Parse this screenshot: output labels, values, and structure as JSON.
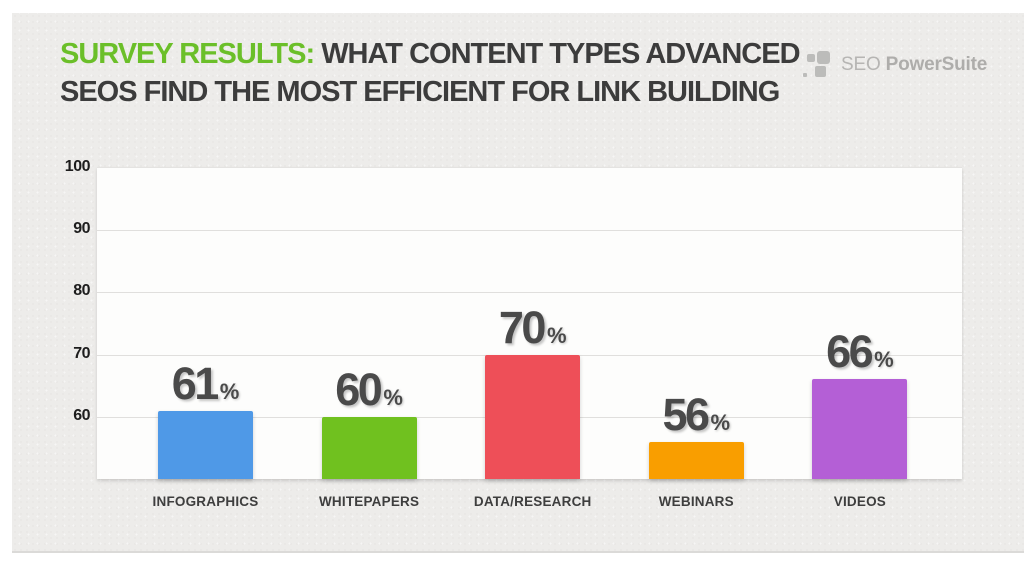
{
  "header": {
    "title_highlight": "SURVEY RESULTS:",
    "title_rest_line1": "WHAT CONTENT TYPES ADVANCED",
    "title_line2": "SEOS FIND THE MOST EFFICIENT FOR LINK BUILDING",
    "logo_text_light": "SEO",
    "logo_text_bold": "PowerSuite"
  },
  "colors": {
    "accent_green": "#6bbf29",
    "title_text": "#3c3c3c",
    "card_background": "#edecea",
    "plot_background": "#fdfdfc",
    "value_label_text": "#4a4a4a"
  },
  "chart_data": {
    "type": "bar",
    "title": "SURVEY RESULTS: WHAT CONTENT TYPES ADVANCED SEOS FIND THE MOST EFFICIENT FOR LINK BUILDING",
    "categories": [
      "INFOGRAPHICS",
      "WHITEPAPERS",
      "DATA/RESEARCH",
      "WEBINARS",
      "VIDEOS"
    ],
    "values": [
      61,
      60,
      70,
      56,
      66
    ],
    "unit": "%",
    "bar_colors": [
      "#4f99e7",
      "#70c11f",
      "#ee4f58",
      "#f99e00",
      "#b45fd6"
    ],
    "y_ticks": [
      100,
      90,
      80,
      70,
      60
    ],
    "ylim": [
      50,
      100
    ],
    "xlabel": "",
    "ylabel": "",
    "grid": true,
    "legend": false
  }
}
